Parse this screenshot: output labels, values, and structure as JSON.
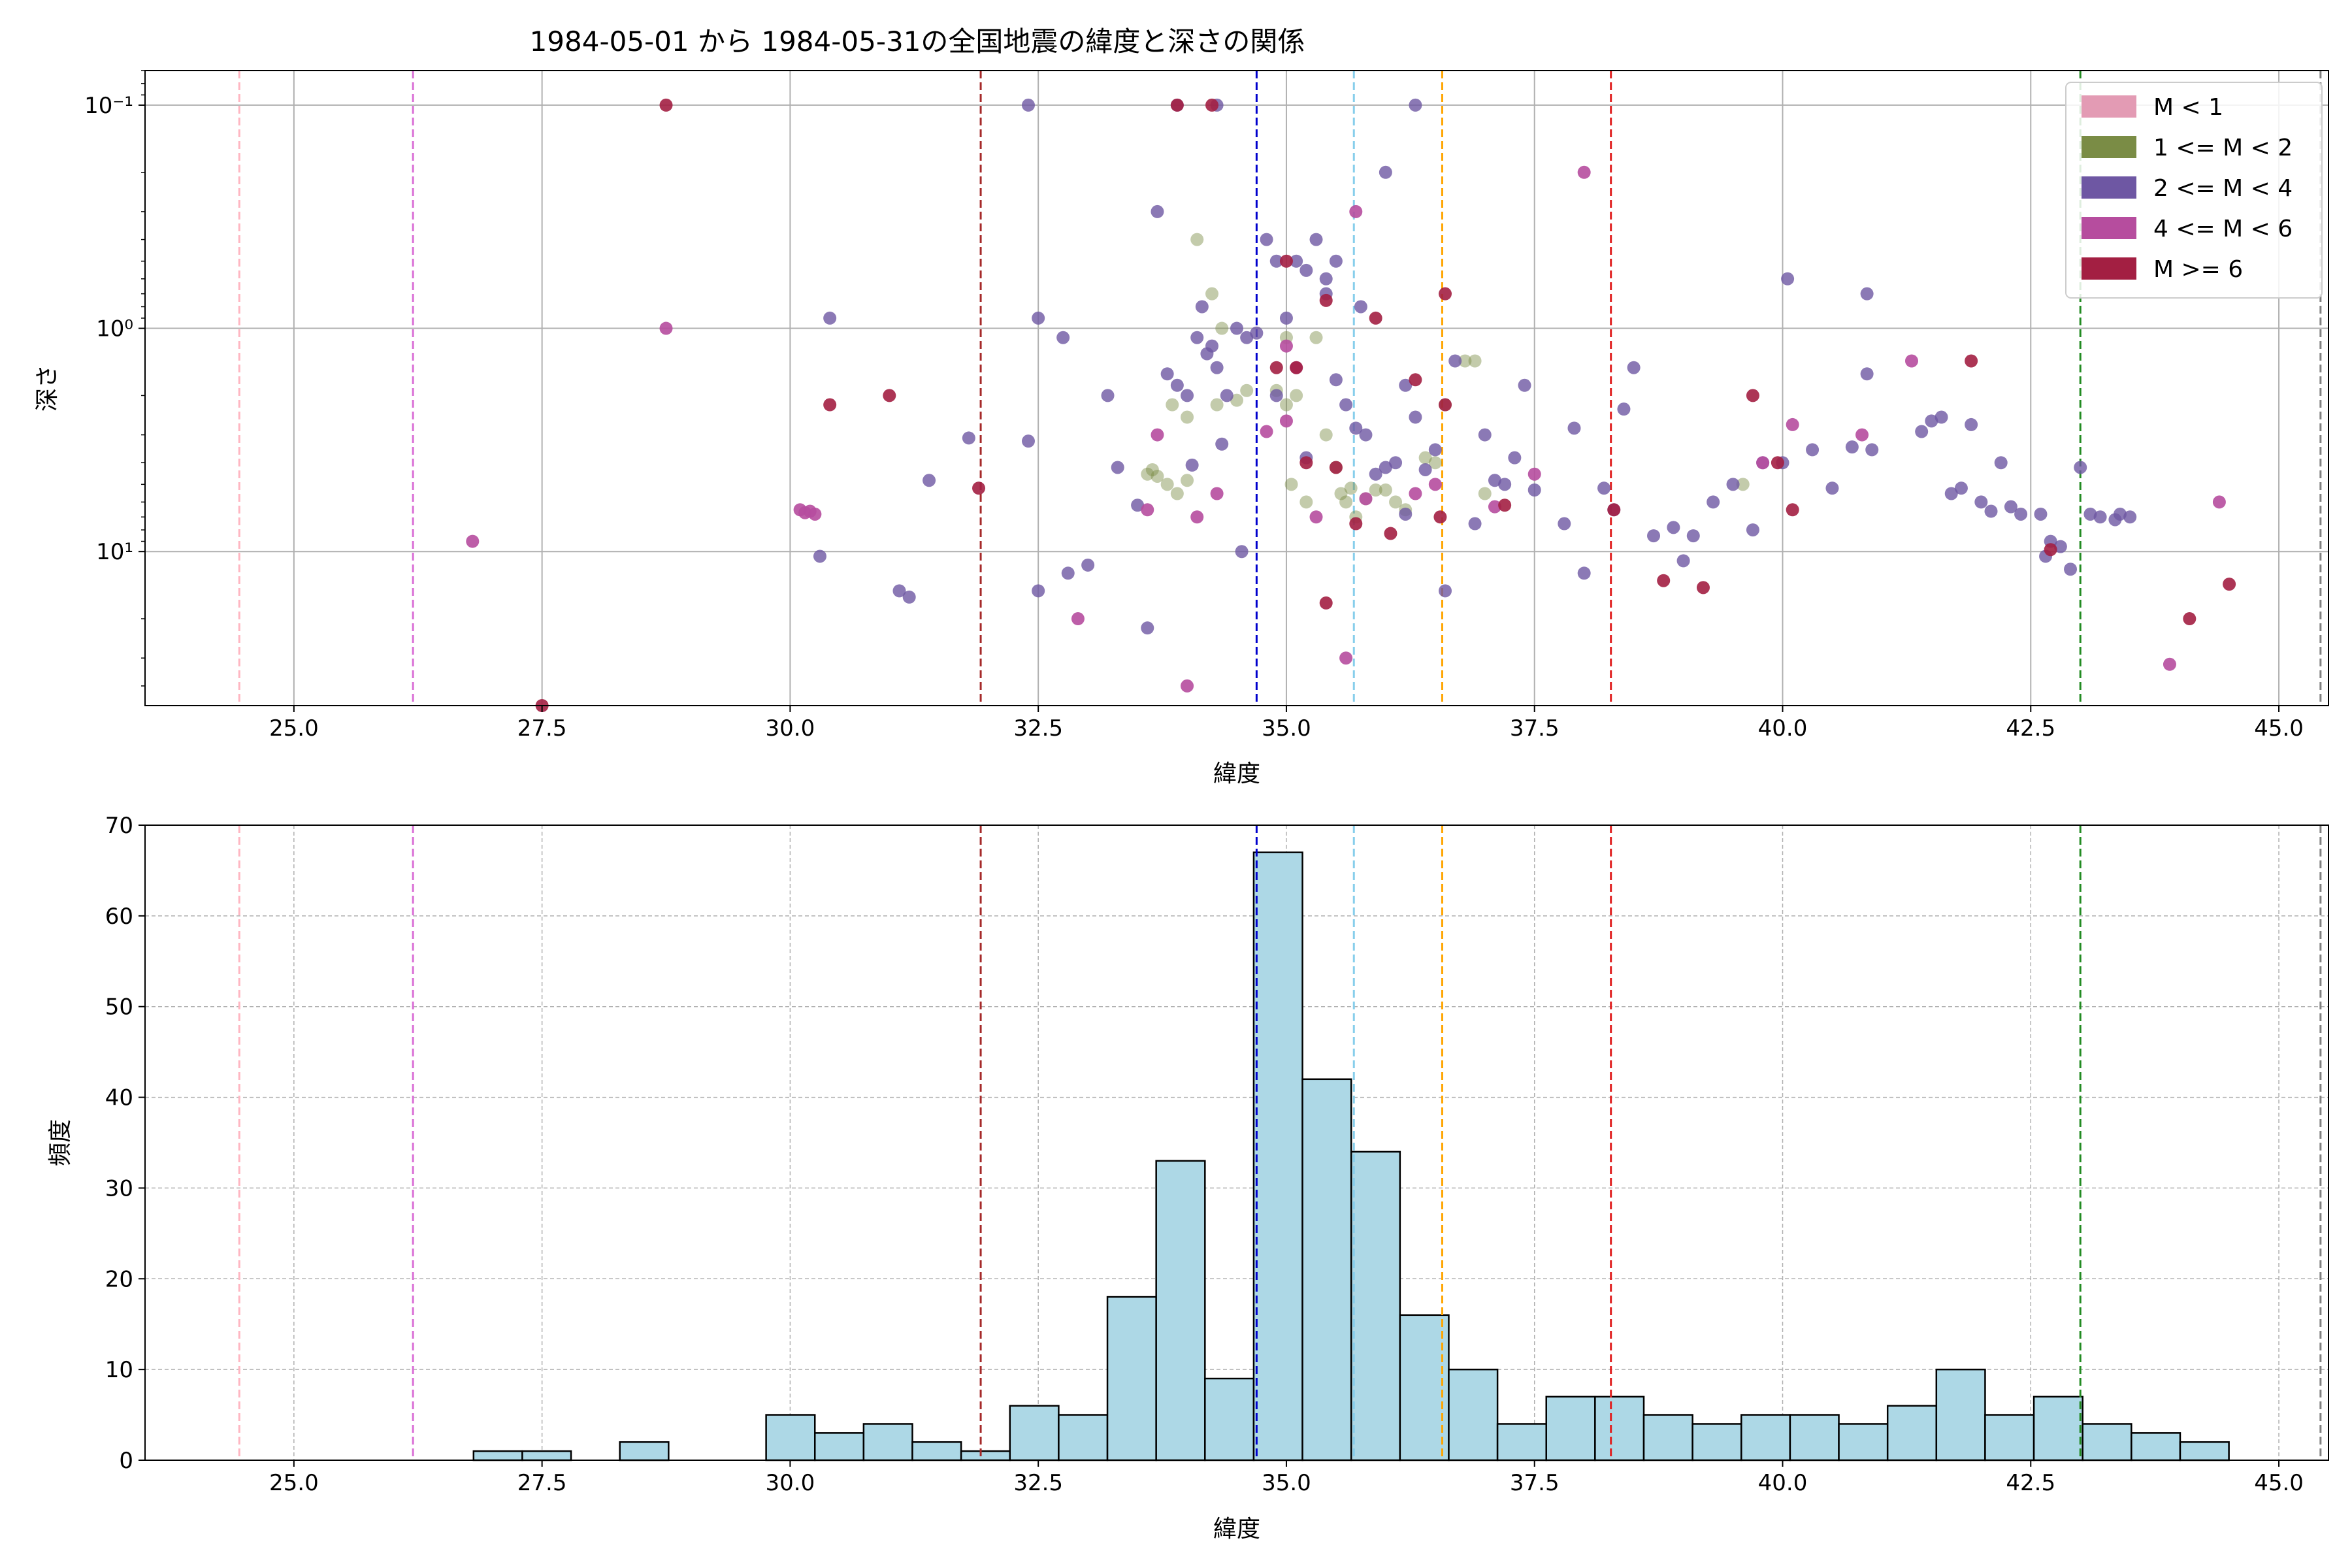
{
  "title": "1984-05-01 から 1984-05-31の全国地震の緯度と深さの関係",
  "colors": {
    "M<1": "#e39bb4",
    "1<=M<2": "#7a8c45",
    "2<=M<4": "#6e57a3",
    "4<=M<6": "#b64d9e",
    "M>=6": "#a31f42",
    "hist_fill": "#add8e6",
    "hist_edge": "#000000"
  },
  "chart_data": [
    {
      "type": "scatter",
      "xlabel": "緯度",
      "ylabel": "深さ",
      "xlim": [
        23.5,
        45.5
      ],
      "yscale": "log",
      "yaxis_inverted": true,
      "ylim_depth": [
        0.07,
        49
      ],
      "xticks": [
        "25.0",
        "27.5",
        "30.0",
        "32.5",
        "35.0",
        "37.5",
        "40.0",
        "42.5",
        "45.0"
      ],
      "yticks": [
        {
          "value": 0.1,
          "label": "10⁻¹"
        },
        {
          "value": 1,
          "label": "10⁰"
        },
        {
          "value": 10,
          "label": "10¹"
        }
      ],
      "grid": true,
      "legend": {
        "placement": "top-right",
        "entries": [
          "M < 1",
          "1 <= M < 2",
          "2 <= M < 4",
          "4 <= M < 6",
          "M >= 6"
        ]
      },
      "vlines": [
        {
          "x": 24.45,
          "color": "#ffb6c1"
        },
        {
          "x": 26.2,
          "color": "#da70d6"
        },
        {
          "x": 31.92,
          "color": "#a52a2a"
        },
        {
          "x": 34.7,
          "color": "#0000cd"
        },
        {
          "x": 35.68,
          "color": "#87ceeb"
        },
        {
          "x": 36.57,
          "color": "#ffa500"
        },
        {
          "x": 38.27,
          "color": "#e02020"
        },
        {
          "x": 43.0,
          "color": "#228b22"
        },
        {
          "x": 45.42,
          "color": "#808080"
        }
      ],
      "series": [
        {
          "key": "1<=M<2",
          "points": [
            [
              33.6,
              4.5
            ],
            [
              33.65,
              4.3
            ],
            [
              33.7,
              4.6
            ],
            [
              33.8,
              5.0
            ],
            [
              33.9,
              5.5
            ],
            [
              34.0,
              4.8
            ],
            [
              33.85,
              2.2
            ],
            [
              34.0,
              2.5
            ],
            [
              34.1,
              0.4
            ],
            [
              34.25,
              0.7
            ],
            [
              34.3,
              2.2
            ],
            [
              34.35,
              1.0
            ],
            [
              34.5,
              2.1
            ],
            [
              34.6,
              1.9
            ],
            [
              35.0,
              1.1
            ],
            [
              35.05,
              5.0
            ],
            [
              35.1,
              2.0
            ],
            [
              35.2,
              6.0
            ],
            [
              35.3,
              1.1
            ],
            [
              35.4,
              3.0
            ],
            [
              35.5,
              4.2
            ],
            [
              35.55,
              5.5
            ],
            [
              35.6,
              6.0
            ],
            [
              35.65,
              5.2
            ],
            [
              35.7,
              7.0
            ],
            [
              35.8,
              5.8
            ],
            [
              35.9,
              5.3
            ],
            [
              36.0,
              5.3
            ],
            [
              36.1,
              6.0
            ],
            [
              36.2,
              6.5
            ],
            [
              36.4,
              3.8
            ],
            [
              36.5,
              4.0
            ],
            [
              36.6,
              2.2
            ],
            [
              36.8,
              1.4
            ],
            [
              36.9,
              1.4
            ],
            [
              37.0,
              5.5
            ],
            [
              39.6,
              5.0
            ],
            [
              35.0,
              2.2
            ],
            [
              34.9,
              1.9
            ]
          ]
        },
        {
          "key": "2<=M<4",
          "points": [
            [
              30.4,
              0.9
            ],
            [
              30.3,
              10.5
            ],
            [
              31.1,
              15.0
            ],
            [
              31.2,
              16.0
            ],
            [
              31.4,
              4.8
            ],
            [
              31.8,
              3.1
            ],
            [
              32.4,
              3.2
            ],
            [
              32.5,
              0.9
            ],
            [
              32.5,
              15.0
            ],
            [
              32.75,
              1.1
            ],
            [
              32.8,
              12.5
            ],
            [
              33.0,
              11.5
            ],
            [
              33.2,
              2.0
            ],
            [
              33.3,
              4.2
            ],
            [
              33.5,
              6.2
            ],
            [
              33.6,
              22.0
            ],
            [
              33.7,
              0.3
            ],
            [
              33.8,
              1.6
            ],
            [
              33.9,
              1.8
            ],
            [
              34.0,
              2.0
            ],
            [
              34.05,
              4.1
            ],
            [
              34.1,
              1.1
            ],
            [
              34.15,
              0.8
            ],
            [
              34.2,
              1.3
            ],
            [
              34.25,
              1.2
            ],
            [
              34.3,
              1.5
            ],
            [
              34.35,
              3.3
            ],
            [
              34.4,
              2.0
            ],
            [
              34.5,
              1.0
            ],
            [
              34.55,
              10.0
            ],
            [
              34.6,
              1.1
            ],
            [
              34.7,
              1.05
            ],
            [
              34.8,
              0.4
            ],
            [
              34.9,
              0.5
            ],
            [
              35.0,
              0.9
            ],
            [
              35.1,
              0.5
            ],
            [
              35.2,
              0.55
            ],
            [
              35.3,
              0.4
            ],
            [
              35.4,
              0.6
            ],
            [
              35.5,
              1.7
            ],
            [
              35.6,
              2.2
            ],
            [
              35.7,
              2.8
            ],
            [
              35.75,
              0.8
            ],
            [
              35.8,
              3.0
            ],
            [
              35.9,
              4.5
            ],
            [
              36.0,
              0.2
            ],
            [
              36.1,
              4.0
            ],
            [
              36.2,
              1.8
            ],
            [
              36.3,
              2.5
            ],
            [
              36.4,
              4.3
            ],
            [
              36.5,
              3.5
            ],
            [
              36.6,
              15.0
            ],
            [
              36.7,
              1.4
            ],
            [
              36.9,
              7.5
            ],
            [
              37.0,
              3.0
            ],
            [
              37.1,
              4.8
            ],
            [
              37.2,
              5.0
            ],
            [
              37.3,
              3.8
            ],
            [
              37.4,
              1.8
            ],
            [
              37.5,
              5.3
            ],
            [
              37.8,
              7.5
            ],
            [
              37.9,
              2.8
            ],
            [
              38.0,
              12.5
            ],
            [
              38.2,
              5.2
            ],
            [
              38.3,
              6.5
            ],
            [
              38.4,
              2.3
            ],
            [
              38.5,
              1.5
            ],
            [
              38.7,
              8.5
            ],
            [
              38.9,
              7.8
            ],
            [
              39.0,
              11.0
            ],
            [
              39.1,
              8.5
            ],
            [
              39.3,
              6.0
            ],
            [
              39.5,
              5.0
            ],
            [
              39.7,
              8.0
            ],
            [
              39.8,
              4.0
            ],
            [
              40.0,
              4.0
            ],
            [
              40.05,
              0.6
            ],
            [
              40.3,
              3.5
            ],
            [
              40.5,
              5.2
            ],
            [
              40.7,
              3.4
            ],
            [
              40.85,
              0.7
            ],
            [
              40.9,
              3.5
            ],
            [
              40.85,
              1.6
            ],
            [
              41.4,
              2.9
            ],
            [
              41.5,
              2.6
            ],
            [
              41.6,
              2.5
            ],
            [
              41.7,
              5.5
            ],
            [
              41.8,
              5.2
            ],
            [
              41.9,
              2.7
            ],
            [
              42.0,
              6.0
            ],
            [
              42.1,
              6.6
            ],
            [
              42.2,
              4.0
            ],
            [
              42.3,
              6.3
            ],
            [
              42.4,
              6.8
            ],
            [
              42.6,
              6.8
            ],
            [
              42.65,
              10.5
            ],
            [
              42.7,
              9.0
            ],
            [
              42.8,
              9.5
            ],
            [
              42.9,
              12.0
            ],
            [
              43.0,
              4.2
            ],
            [
              43.1,
              6.8
            ],
            [
              43.2,
              7.0
            ],
            [
              43.35,
              7.2
            ],
            [
              43.4,
              6.8
            ],
            [
              43.5,
              7.0
            ],
            [
              34.3,
              0.1
            ],
            [
              33.9,
              0.1
            ],
            [
              36.3,
              0.1
            ],
            [
              32.4,
              0.1
            ],
            [
              35.5,
              0.5
            ],
            [
              34.9,
              2.0
            ],
            [
              35.2,
              3.8
            ],
            [
              36.0,
              4.2
            ],
            [
              36.2,
              6.8
            ],
            [
              35.4,
              0.7
            ]
          ]
        },
        {
          "key": "4<=M<6",
          "points": [
            [
              26.8,
              9.0
            ],
            [
              28.75,
              1.0
            ],
            [
              30.1,
              6.5
            ],
            [
              30.15,
              6.7
            ],
            [
              30.2,
              6.6
            ],
            [
              30.25,
              6.8
            ],
            [
              32.9,
              20.0
            ],
            [
              33.7,
              3.0
            ],
            [
              33.6,
              6.5
            ],
            [
              34.0,
              40.0
            ],
            [
              34.1,
              7.0
            ],
            [
              34.3,
              5.5
            ],
            [
              35.0,
              1.2
            ],
            [
              35.1,
              1.5
            ],
            [
              35.3,
              7.0
            ],
            [
              35.6,
              30.0
            ],
            [
              35.7,
              0.3
            ],
            [
              35.8,
              5.8
            ],
            [
              36.3,
              5.5
            ],
            [
              36.5,
              5.0
            ],
            [
              37.1,
              6.3
            ],
            [
              37.5,
              4.5
            ],
            [
              38.0,
              0.2
            ],
            [
              39.8,
              4.0
            ],
            [
              40.1,
              2.7
            ],
            [
              40.8,
              3.0
            ],
            [
              41.3,
              1.4
            ],
            [
              43.9,
              32.0
            ],
            [
              44.4,
              6.0
            ],
            [
              35.0,
              2.6
            ],
            [
              34.8,
              2.9
            ]
          ]
        },
        {
          "key": "M>=6",
          "points": [
            [
              27.5,
              50.0
            ],
            [
              28.75,
              0.1
            ],
            [
              30.4,
              2.2
            ],
            [
              31.0,
              2.0
            ],
            [
              31.9,
              5.2
            ],
            [
              33.9,
              0.1
            ],
            [
              34.25,
              0.1
            ],
            [
              35.0,
              0.5
            ],
            [
              34.9,
              1.5
            ],
            [
              35.1,
              1.5
            ],
            [
              35.2,
              4.0
            ],
            [
              35.4,
              0.75
            ],
            [
              35.5,
              4.2
            ],
            [
              35.7,
              7.5
            ],
            [
              35.9,
              0.9
            ],
            [
              36.05,
              8.3
            ],
            [
              36.3,
              1.7
            ],
            [
              36.55,
              7.0
            ],
            [
              36.6,
              2.2
            ],
            [
              36.6,
              0.7
            ],
            [
              37.2,
              6.2
            ],
            [
              38.3,
              6.5
            ],
            [
              38.8,
              13.5
            ],
            [
              39.2,
              14.5
            ],
            [
              39.7,
              2.0
            ],
            [
              39.95,
              4.0
            ],
            [
              40.1,
              6.5
            ],
            [
              41.9,
              1.4
            ],
            [
              42.7,
              9.8
            ],
            [
              44.1,
              20.0
            ],
            [
              44.5,
              14.0
            ],
            [
              35.4,
              17.0
            ]
          ]
        }
      ]
    },
    {
      "type": "bar",
      "xlabel": "緯度",
      "ylabel": "頻度",
      "xlim": [
        23.5,
        45.5
      ],
      "ylim": [
        0,
        70
      ],
      "xticks": [
        "25.0",
        "27.5",
        "30.0",
        "32.5",
        "35.0",
        "37.5",
        "40.0",
        "42.5",
        "45.0"
      ],
      "yticks": [
        "0",
        "10",
        "20",
        "30",
        "40",
        "50",
        "60",
        "70"
      ],
      "grid": true,
      "bin_start": 26.81,
      "bin_width": 0.4913,
      "counts": [
        1,
        1,
        0,
        2,
        0,
        0,
        5,
        3,
        4,
        2,
        1,
        6,
        5,
        18,
        33,
        9,
        67,
        42,
        34,
        16,
        10,
        4,
        7,
        7,
        5,
        4,
        5,
        5,
        4,
        6,
        10,
        5,
        7,
        4,
        3,
        2
      ],
      "vlines": [
        {
          "x": 24.45,
          "color": "#ffb6c1"
        },
        {
          "x": 26.2,
          "color": "#da70d6"
        },
        {
          "x": 31.92,
          "color": "#a52a2a"
        },
        {
          "x": 34.7,
          "color": "#0000cd"
        },
        {
          "x": 35.68,
          "color": "#87ceeb"
        },
        {
          "x": 36.57,
          "color": "#ffa500"
        },
        {
          "x": 38.27,
          "color": "#e02020"
        },
        {
          "x": 43.0,
          "color": "#228b22"
        },
        {
          "x": 45.42,
          "color": "#808080"
        }
      ]
    }
  ]
}
